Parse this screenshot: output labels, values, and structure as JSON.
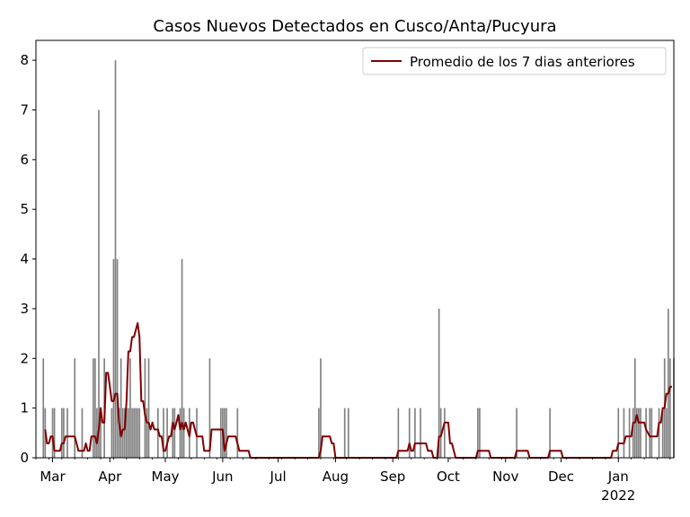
{
  "chart_data": {
    "type": "bar",
    "title": "Casos Nuevos Detectados en Cusco/Anta/Pucyura",
    "xlabel": "",
    "ylabel": "",
    "x_start": "2021-02-20",
    "x_end": "2022-01-31",
    "ylim": [
      0,
      8.4
    ],
    "yticks": [
      0,
      1,
      2,
      3,
      4,
      5,
      6,
      7,
      8
    ],
    "xticks": [
      {
        "date": "2021-03-01",
        "label": "Mar"
      },
      {
        "date": "2021-04-01",
        "label": "Apr"
      },
      {
        "date": "2021-05-01",
        "label": "May"
      },
      {
        "date": "2021-06-01",
        "label": "Jun"
      },
      {
        "date": "2021-07-01",
        "label": "Jul"
      },
      {
        "date": "2021-08-01",
        "label": "Aug"
      },
      {
        "date": "2021-09-01",
        "label": "Sep"
      },
      {
        "date": "2021-10-01",
        "label": "Oct"
      },
      {
        "date": "2021-11-01",
        "label": "Nov"
      },
      {
        "date": "2021-12-01",
        "label": "Dec"
      },
      {
        "date": "2022-01-01",
        "label": "Jan"
      }
    ],
    "year_label": "2022",
    "grid": false,
    "legend_position": "top-right",
    "series": [
      {
        "name": "",
        "kind": "bar",
        "color": "#808080",
        "dates": [
          "2021-02-24",
          "2021-02-25",
          "2021-03-01",
          "2021-03-02",
          "2021-03-06",
          "2021-03-07",
          "2021-03-09",
          "2021-03-13",
          "2021-03-17",
          "2021-03-23",
          "2021-03-24",
          "2021-03-25",
          "2021-03-26",
          "2021-03-27",
          "2021-03-29",
          "2021-04-02",
          "2021-04-03",
          "2021-04-04",
          "2021-04-05",
          "2021-04-06",
          "2021-04-07",
          "2021-04-08",
          "2021-04-09",
          "2021-04-10",
          "2021-04-11",
          "2021-04-12",
          "2021-04-13",
          "2021-04-14",
          "2021-04-15",
          "2021-04-16",
          "2021-04-17",
          "2021-04-20",
          "2021-04-21",
          "2021-04-22",
          "2021-04-27",
          "2021-04-30",
          "2021-05-02",
          "2021-05-05",
          "2021-05-06",
          "2021-05-09",
          "2021-05-10",
          "2021-05-11",
          "2021-05-14",
          "2021-05-18",
          "2021-05-25",
          "2021-05-31",
          "2021-06-01",
          "2021-06-02",
          "2021-06-03",
          "2021-06-09",
          "2021-07-23",
          "2021-07-24",
          "2021-08-06",
          "2021-08-08",
          "2021-09-04",
          "2021-09-10",
          "2021-09-13",
          "2021-09-16",
          "2021-09-26",
          "2021-09-27",
          "2021-09-29",
          "2021-10-17",
          "2021-10-18",
          "2021-11-07",
          "2021-11-25",
          "2022-01-01",
          "2022-01-04",
          "2022-01-07",
          "2022-01-09",
          "2022-01-10",
          "2022-01-11",
          "2022-01-12",
          "2022-01-13",
          "2022-01-16",
          "2022-01-18",
          "2022-01-19",
          "2022-01-23",
          "2022-01-25",
          "2022-01-26",
          "2022-01-27",
          "2022-01-28",
          "2022-01-29",
          "2022-01-31"
        ],
        "values": [
          2,
          1,
          1,
          1,
          1,
          1,
          1,
          2,
          1,
          2,
          2,
          1,
          7,
          1,
          2,
          1,
          4,
          8,
          4,
          1,
          2,
          1,
          1,
          1,
          1,
          2,
          1,
          1,
          1,
          1,
          1,
          2,
          1,
          2,
          1,
          1,
          1,
          1,
          1,
          1,
          4,
          1,
          1,
          1,
          2,
          1,
          1,
          1,
          1,
          1,
          1,
          2,
          1,
          1,
          1,
          1,
          1,
          1,
          3,
          1,
          1,
          1,
          1,
          1,
          1,
          1,
          1,
          1,
          1,
          2,
          1,
          1,
          1,
          1,
          1,
          1,
          1,
          1,
          2,
          1,
          3,
          2,
          2
        ]
      },
      {
        "name": "Promedio de los 7 dias anteriores",
        "kind": "line",
        "color": "#800000",
        "points": [
          [
            "2021-02-25",
            0.57
          ],
          [
            "2021-02-26",
            0.29
          ],
          [
            "2021-02-27",
            0.29
          ],
          [
            "2021-02-28",
            0.43
          ],
          [
            "2021-03-01",
            0.43
          ],
          [
            "2021-03-02",
            0.14
          ],
          [
            "2021-03-05",
            0.14
          ],
          [
            "2021-03-06",
            0.29
          ],
          [
            "2021-03-07",
            0.29
          ],
          [
            "2021-03-08",
            0.43
          ],
          [
            "2021-03-13",
            0.43
          ],
          [
            "2021-03-14",
            0.29
          ],
          [
            "2021-03-15",
            0.14
          ],
          [
            "2021-03-18",
            0.14
          ],
          [
            "2021-03-19",
            0.29
          ],
          [
            "2021-03-20",
            0.14
          ],
          [
            "2021-03-21",
            0.14
          ],
          [
            "2021-03-22",
            0.43
          ],
          [
            "2021-03-24",
            0.43
          ],
          [
            "2021-03-25",
            0.29
          ],
          [
            "2021-03-26",
            0.57
          ],
          [
            "2021-03-27",
            1.0
          ],
          [
            "2021-03-28",
            0.71
          ],
          [
            "2021-03-29",
            0.71
          ],
          [
            "2021-03-30",
            1.71
          ],
          [
            "2021-03-31",
            1.71
          ],
          [
            "2021-04-01",
            1.43
          ],
          [
            "2021-04-02",
            1.14
          ],
          [
            "2021-04-03",
            1.14
          ],
          [
            "2021-04-04",
            1.29
          ],
          [
            "2021-04-05",
            1.29
          ],
          [
            "2021-04-06",
            0.71
          ],
          [
            "2021-04-07",
            0.43
          ],
          [
            "2021-04-08",
            0.57
          ],
          [
            "2021-04-09",
            0.57
          ],
          [
            "2021-04-10",
            1.14
          ],
          [
            "2021-04-11",
            2.14
          ],
          [
            "2021-04-12",
            2.14
          ],
          [
            "2021-04-13",
            2.43
          ],
          [
            "2021-04-14",
            2.43
          ],
          [
            "2021-04-15",
            2.57
          ],
          [
            "2021-04-16",
            2.71
          ],
          [
            "2021-04-17",
            2.43
          ],
          [
            "2021-04-18",
            1.14
          ],
          [
            "2021-04-19",
            1.14
          ],
          [
            "2021-04-20",
            0.86
          ],
          [
            "2021-04-21",
            0.71
          ],
          [
            "2021-04-22",
            0.71
          ],
          [
            "2021-04-23",
            0.57
          ],
          [
            "2021-04-24",
            0.71
          ],
          [
            "2021-04-25",
            0.57
          ],
          [
            "2021-04-26",
            0.57
          ],
          [
            "2021-04-27",
            0.57
          ],
          [
            "2021-04-28",
            0.43
          ],
          [
            "2021-04-29",
            0.43
          ],
          [
            "2021-04-30",
            0.14
          ],
          [
            "2021-05-01",
            0.14
          ],
          [
            "2021-05-02",
            0.29
          ],
          [
            "2021-05-03",
            0.43
          ],
          [
            "2021-05-04",
            0.43
          ],
          [
            "2021-05-05",
            0.71
          ],
          [
            "2021-05-06",
            0.57
          ],
          [
            "2021-05-07",
            0.71
          ],
          [
            "2021-05-08",
            0.86
          ],
          [
            "2021-05-09",
            0.57
          ],
          [
            "2021-05-10",
            0.71
          ],
          [
            "2021-05-11",
            0.57
          ],
          [
            "2021-05-12",
            0.71
          ],
          [
            "2021-05-13",
            0.57
          ],
          [
            "2021-05-14",
            0.43
          ],
          [
            "2021-05-15",
            0.71
          ],
          [
            "2021-05-16",
            0.71
          ],
          [
            "2021-05-17",
            0.57
          ],
          [
            "2021-05-18",
            0.43
          ],
          [
            "2021-05-21",
            0.43
          ],
          [
            "2021-05-22",
            0.14
          ],
          [
            "2021-05-25",
            0.14
          ],
          [
            "2021-05-26",
            0.57
          ],
          [
            "2021-06-01",
            0.57
          ],
          [
            "2021-06-02",
            0.14
          ],
          [
            "2021-06-03",
            0.29
          ],
          [
            "2021-06-04",
            0.43
          ],
          [
            "2021-06-08",
            0.43
          ],
          [
            "2021-06-09",
            0.29
          ],
          [
            "2021-06-10",
            0.14
          ],
          [
            "2021-06-15",
            0.14
          ],
          [
            "2021-06-16",
            0
          ],
          [
            "2021-07-23",
            0
          ],
          [
            "2021-07-24",
            0.14
          ],
          [
            "2021-07-25",
            0.43
          ],
          [
            "2021-07-29",
            0.43
          ],
          [
            "2021-07-30",
            0.29
          ],
          [
            "2021-07-31",
            0.29
          ],
          [
            "2021-08-01",
            0
          ],
          [
            "2021-09-03",
            0
          ],
          [
            "2021-09-04",
            0.14
          ],
          [
            "2021-09-09",
            0.14
          ],
          [
            "2021-09-10",
            0.29
          ],
          [
            "2021-09-11",
            0.14
          ],
          [
            "2021-09-12",
            0.14
          ],
          [
            "2021-09-13",
            0.29
          ],
          [
            "2021-09-19",
            0.29
          ],
          [
            "2021-09-20",
            0.14
          ],
          [
            "2021-09-22",
            0.14
          ],
          [
            "2021-09-23",
            0
          ],
          [
            "2021-09-25",
            0
          ],
          [
            "2021-09-26",
            0.43
          ],
          [
            "2021-09-27",
            0.43
          ],
          [
            "2021-09-28",
            0.57
          ],
          [
            "2021-09-29",
            0.71
          ],
          [
            "2021-10-01",
            0.71
          ],
          [
            "2021-10-02",
            0.29
          ],
          [
            "2021-10-03",
            0.29
          ],
          [
            "2021-10-04",
            0.14
          ],
          [
            "2021-10-05",
            0
          ],
          [
            "2021-10-16",
            0
          ],
          [
            "2021-10-17",
            0.14
          ],
          [
            "2021-10-23",
            0.14
          ],
          [
            "2021-10-24",
            0
          ],
          [
            "2021-11-06",
            0
          ],
          [
            "2021-11-07",
            0.14
          ],
          [
            "2021-11-13",
            0.14
          ],
          [
            "2021-11-14",
            0
          ],
          [
            "2021-11-24",
            0
          ],
          [
            "2021-11-25",
            0.14
          ],
          [
            "2021-12-01",
            0.14
          ],
          [
            "2021-12-02",
            0
          ],
          [
            "2021-12-28",
            0
          ],
          [
            "2021-12-29",
            0.14
          ],
          [
            "2021-12-31",
            0.14
          ],
          [
            "2022-01-01",
            0.29
          ],
          [
            "2022-01-04",
            0.29
          ],
          [
            "2022-01-05",
            0.43
          ],
          [
            "2022-01-08",
            0.43
          ],
          [
            "2022-01-09",
            0.71
          ],
          [
            "2022-01-10",
            0.71
          ],
          [
            "2022-01-11",
            0.86
          ],
          [
            "2022-01-12",
            0.71
          ],
          [
            "2022-01-15",
            0.71
          ],
          [
            "2022-01-16",
            0.57
          ],
          [
            "2022-01-18",
            0.43
          ],
          [
            "2022-01-22",
            0.43
          ],
          [
            "2022-01-23",
            0.71
          ],
          [
            "2022-01-24",
            0.71
          ],
          [
            "2022-01-25",
            1.0
          ],
          [
            "2022-01-26",
            1.0
          ],
          [
            "2022-01-27",
            1.29
          ],
          [
            "2022-01-28",
            1.29
          ],
          [
            "2022-01-29",
            1.43
          ],
          [
            "2022-01-30",
            1.43
          ]
        ]
      }
    ]
  }
}
